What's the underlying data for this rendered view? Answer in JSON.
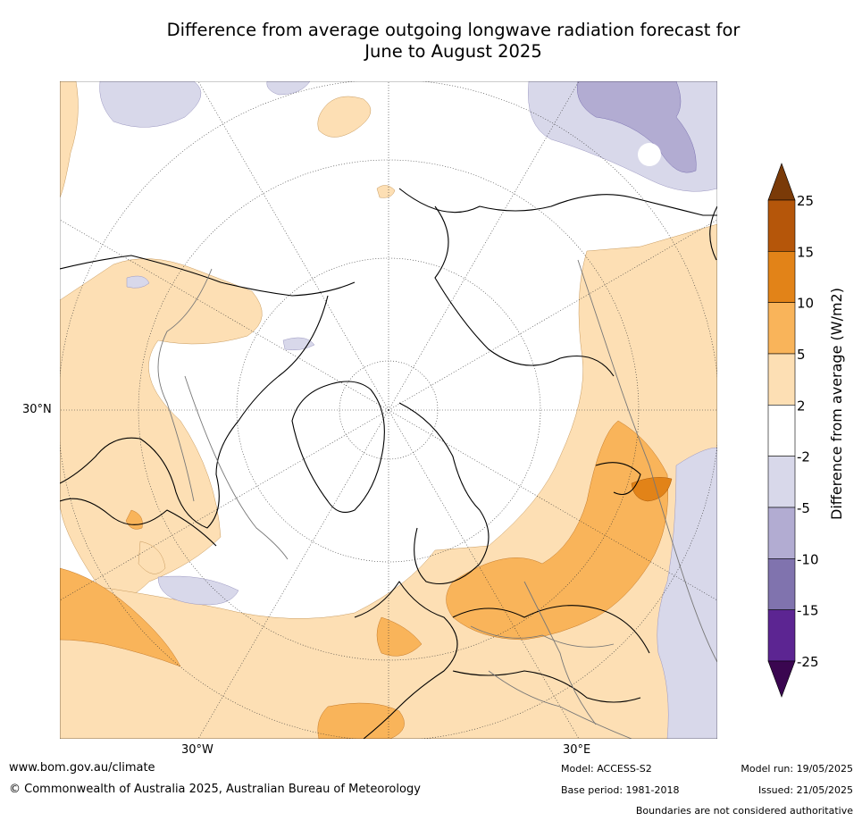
{
  "title_line1": "Difference from average outgoing longwave radiation forecast for",
  "title_line2": "June to August 2025",
  "axis_labels": {
    "lat_30n": "30°N",
    "lon_30w": "30°W",
    "lon_30e": "30°E"
  },
  "colorbar": {
    "label": "Difference from average (W/m2)",
    "ticks": [
      "25",
      "15",
      "10",
      "5",
      "2",
      "-2",
      "-5",
      "-10",
      "-15",
      "-25"
    ],
    "colors": [
      "#7a3a08",
      "#b5560a",
      "#e28318",
      "#f9b45a",
      "#fddfb4",
      "#ffffff",
      "#d8d8ea",
      "#b2acd2",
      "#8073ae",
      "#5c2592",
      "#3a0650"
    ]
  },
  "footer": {
    "website": "www.bom.gov.au/climate",
    "copyright": "© Commonwealth of Australia 2025, Australian Bureau of Meteorology",
    "model": "Model: ACCESS-S2",
    "base_period": "Base period: 1981-2018",
    "model_run": "Model run: 19/05/2025",
    "issued": "Issued: 21/05/2025",
    "disclaimer": "Boundaries are not considered authoritative"
  }
}
